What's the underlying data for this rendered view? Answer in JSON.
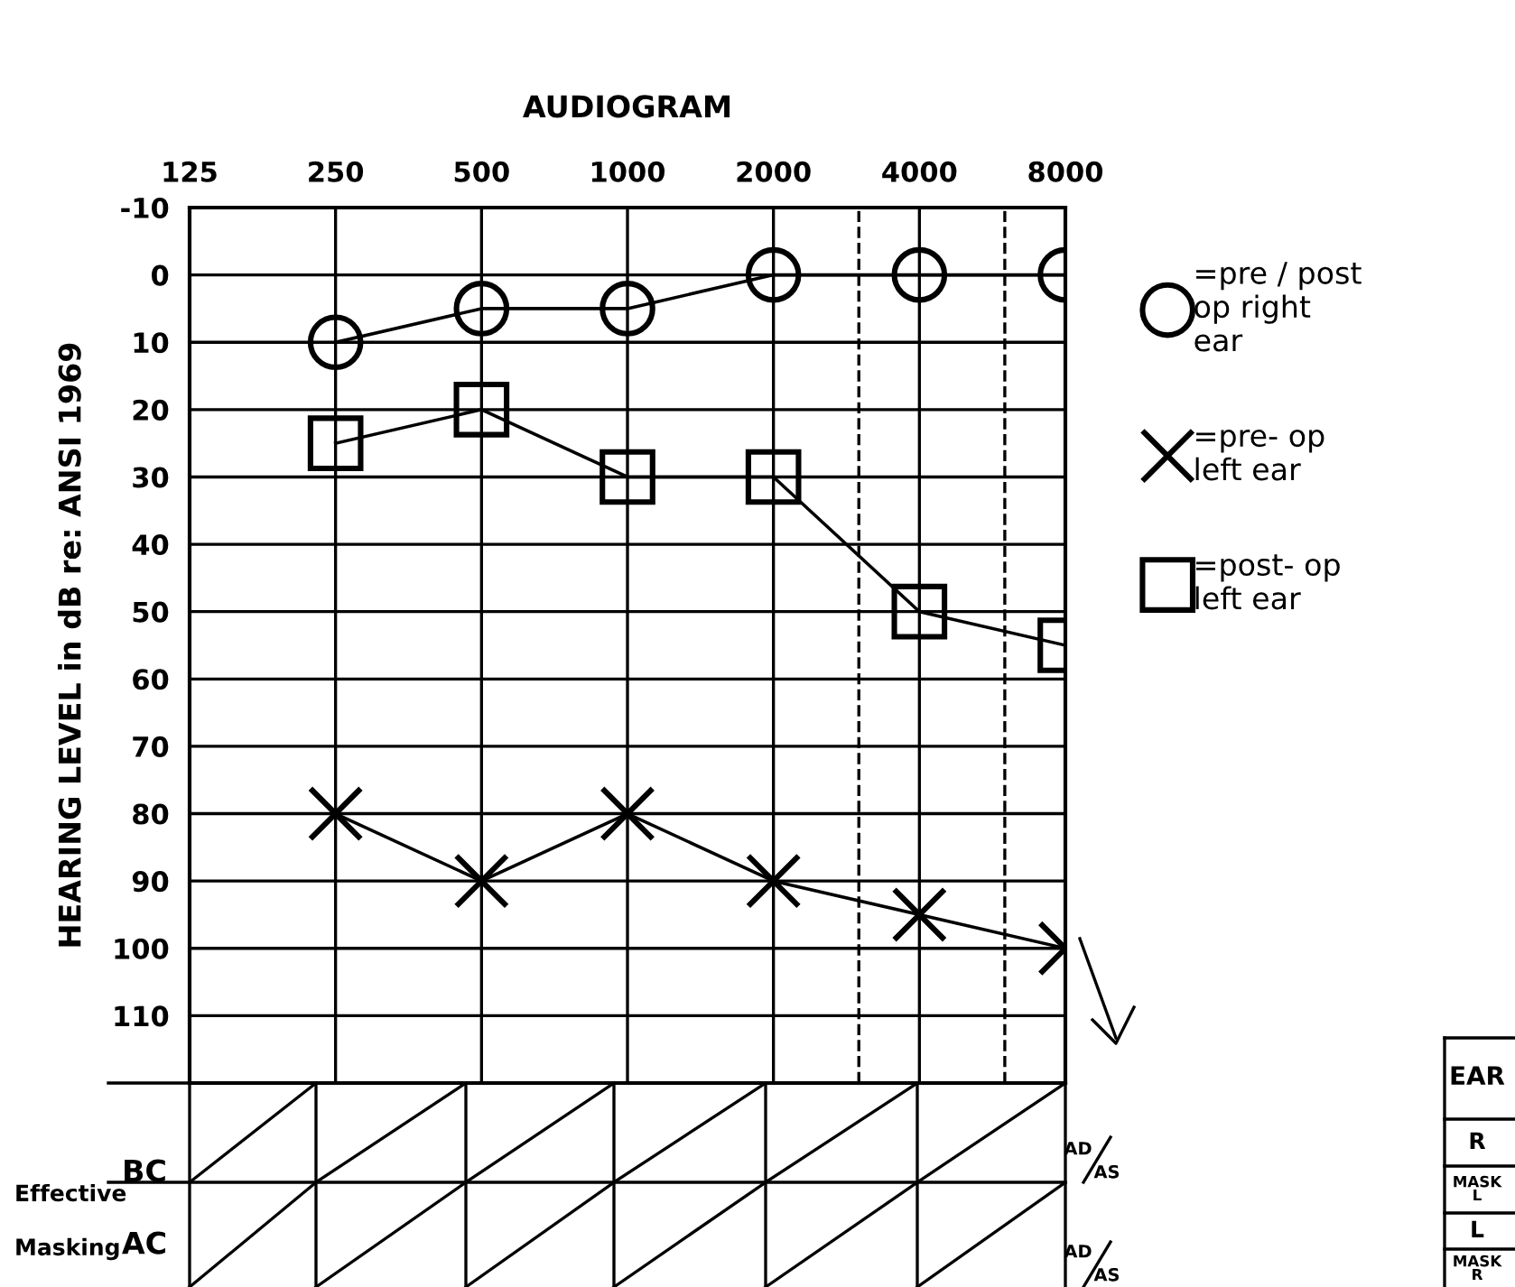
{
  "chart_data": {
    "type": "line",
    "title": "AUDIOGRAM",
    "ylabel": "HEARING LEVEL in dB re: ANSI 1969",
    "x": [
      250,
      500,
      1000,
      2000,
      4000,
      8000
    ],
    "log": "x",
    "xlim": [
      125,
      8000
    ],
    "xticks": [
      125,
      250,
      500,
      1000,
      2000,
      4000,
      8000
    ],
    "ylim": [
      120,
      -10
    ],
    "yticks": [
      -10,
      0,
      10,
      20,
      30,
      40,
      50,
      60,
      70,
      80,
      90,
      100,
      110
    ],
    "grid": true,
    "legend": "right",
    "series": [
      {
        "name": "=pre / post\nop right\near",
        "color": "#000000",
        "marker": "circle",
        "values": [
          10,
          5,
          5,
          0,
          0,
          0
        ]
      },
      {
        "name": "=pre- op\nleft ear",
        "color": "#000000",
        "marker": "cross",
        "values": [
          80,
          90,
          80,
          90,
          95,
          100
        ]
      },
      {
        "name": "=post- op\nleft ear",
        "color": "#000000",
        "marker": "square",
        "values": [
          25,
          20,
          30,
          30,
          50,
          55
        ]
      }
    ],
    "ref_lines": [
      {
        "axis": "x",
        "value": 3000,
        "line_style": "dashed"
      },
      {
        "axis": "x",
        "value": 6000,
        "line_style": "dashed"
      }
    ],
    "annotations": [
      "Effective",
      "Masking",
      "BC",
      "AC",
      "AD",
      "AS",
      "AD",
      "AS",
      "EAR",
      "R",
      "MASK\nL",
      "L",
      "MASK\nR"
    ]
  }
}
